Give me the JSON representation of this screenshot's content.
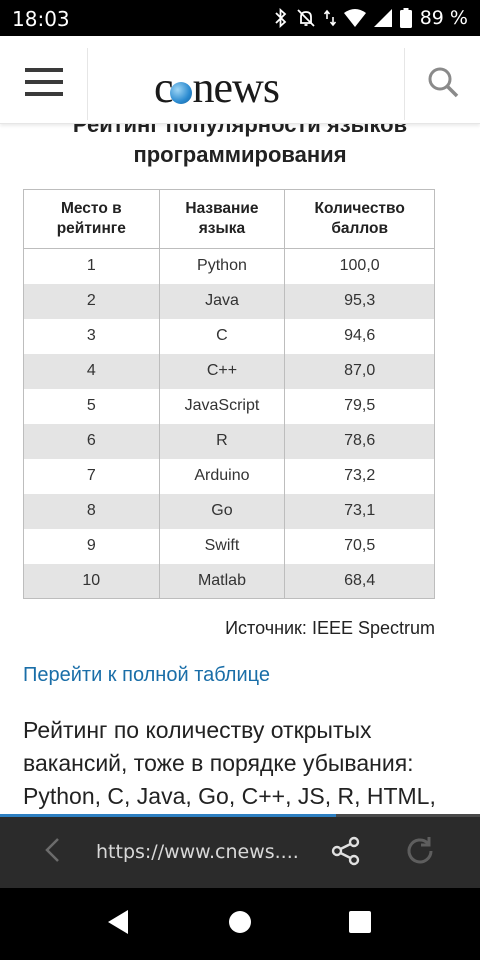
{
  "status_bar": {
    "time": "18:03",
    "battery": "89 %",
    "icons": [
      "bluetooth-icon",
      "mute-icon",
      "data-arrows-icon",
      "wifi-icon",
      "signal-icon",
      "battery-icon"
    ]
  },
  "header": {
    "logo_text_c": "c",
    "logo_text_rest": "news",
    "menu_icon": "hamburger-menu-icon",
    "search_icon": "search-icon"
  },
  "article": {
    "title_partial": "Рейтинг популярности языков",
    "title_line2": "программирования",
    "table": {
      "headers": [
        "Место в рейтинге",
        "Название языка",
        "Количество баллов"
      ],
      "rows": [
        [
          "1",
          "Python",
          "100,0"
        ],
        [
          "2",
          "Java",
          "95,3"
        ],
        [
          "3",
          "C",
          "94,6"
        ],
        [
          "4",
          "C++",
          "87,0"
        ],
        [
          "5",
          "JavaScript",
          "79,5"
        ],
        [
          "6",
          "R",
          "78,6"
        ],
        [
          "7",
          "Arduino",
          "73,2"
        ],
        [
          "8",
          "Go",
          "73,1"
        ],
        [
          "9",
          "Swift",
          "70,5"
        ],
        [
          "10",
          "Matlab",
          "68,4"
        ]
      ]
    },
    "source": "Источник: IEEE Spectrum",
    "full_table_link": "Перейти к полной таблице",
    "paragraph": "Рейтинг по количеству открытых вакансий, тоже в порядке убывания: Python, C, Java, Go, C++, JS, R, HTML,"
  },
  "browser": {
    "url": "https://www.cnews....",
    "progress": 0.7,
    "accent_color": "#2d7fc1"
  },
  "colors": {
    "link": "#1a6ea8",
    "row_stripe": "#e4e4e4",
    "browser_bar": "#2b2b2b"
  }
}
